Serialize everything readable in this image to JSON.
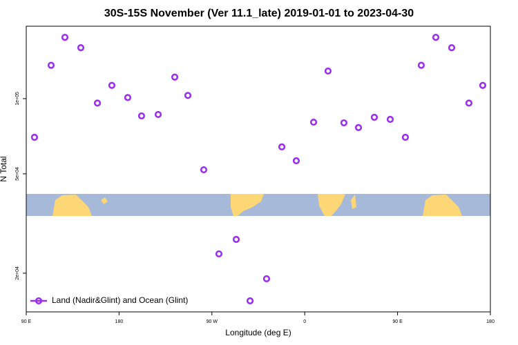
{
  "chart_data": {
    "type": "scatter",
    "title": "30S-15S November (Ver 11.1_late)   2019-01-01 to 2023-04-30",
    "x_label": "Longitude (deg E)",
    "y_label": "N Total",
    "xlim": [
      90,
      540
    ],
    "xticks": [
      {
        "value": 90,
        "label": "90 E"
      },
      {
        "value": 180,
        "label": "180"
      },
      {
        "value": 270,
        "label": "90 W"
      },
      {
        "value": 360,
        "label": "0"
      },
      {
        "value": 450,
        "label": "90 E"
      },
      {
        "value": 540,
        "label": "180"
      }
    ],
    "ylim": [
      14000,
      195000
    ],
    "log_y": true,
    "yticks": [
      {
        "value": 20000,
        "label": "2e+04"
      },
      {
        "value": 50000,
        "label": "5e+04"
      },
      {
        "value": 100000,
        "label": "1e+05"
      }
    ],
    "legend_position": "lower left",
    "series": [
      {
        "name": "Land (Nadir&Glint) and Ocean (Glint)",
        "color": "#9b2ff0",
        "x": [
          98.0,
          114.1,
          127.5,
          142.9,
          159.0,
          173.0,
          188.4,
          201.8,
          217.9,
          234.0,
          246.7,
          262.1,
          276.8,
          293.6,
          307.0,
          323.0,
          337.8,
          351.8,
          368.6,
          382.6,
          398.0,
          412.1,
          427.5,
          442.9,
          457.6,
          473.0,
          487.1,
          502.5,
          519.2,
          532.6
        ],
        "values": [
          70000,
          136000,
          176000,
          160000,
          96000,
          113000,
          101000,
          85300,
          86400,
          122000,
          103000,
          51900,
          23900,
          27300,
          15500,
          19000,
          64100,
          56400,
          80500,
          129000,
          80000,
          76600,
          84200,
          82600,
          70000,
          136000,
          176000,
          160000,
          96000,
          113000
        ]
      }
    ]
  }
}
